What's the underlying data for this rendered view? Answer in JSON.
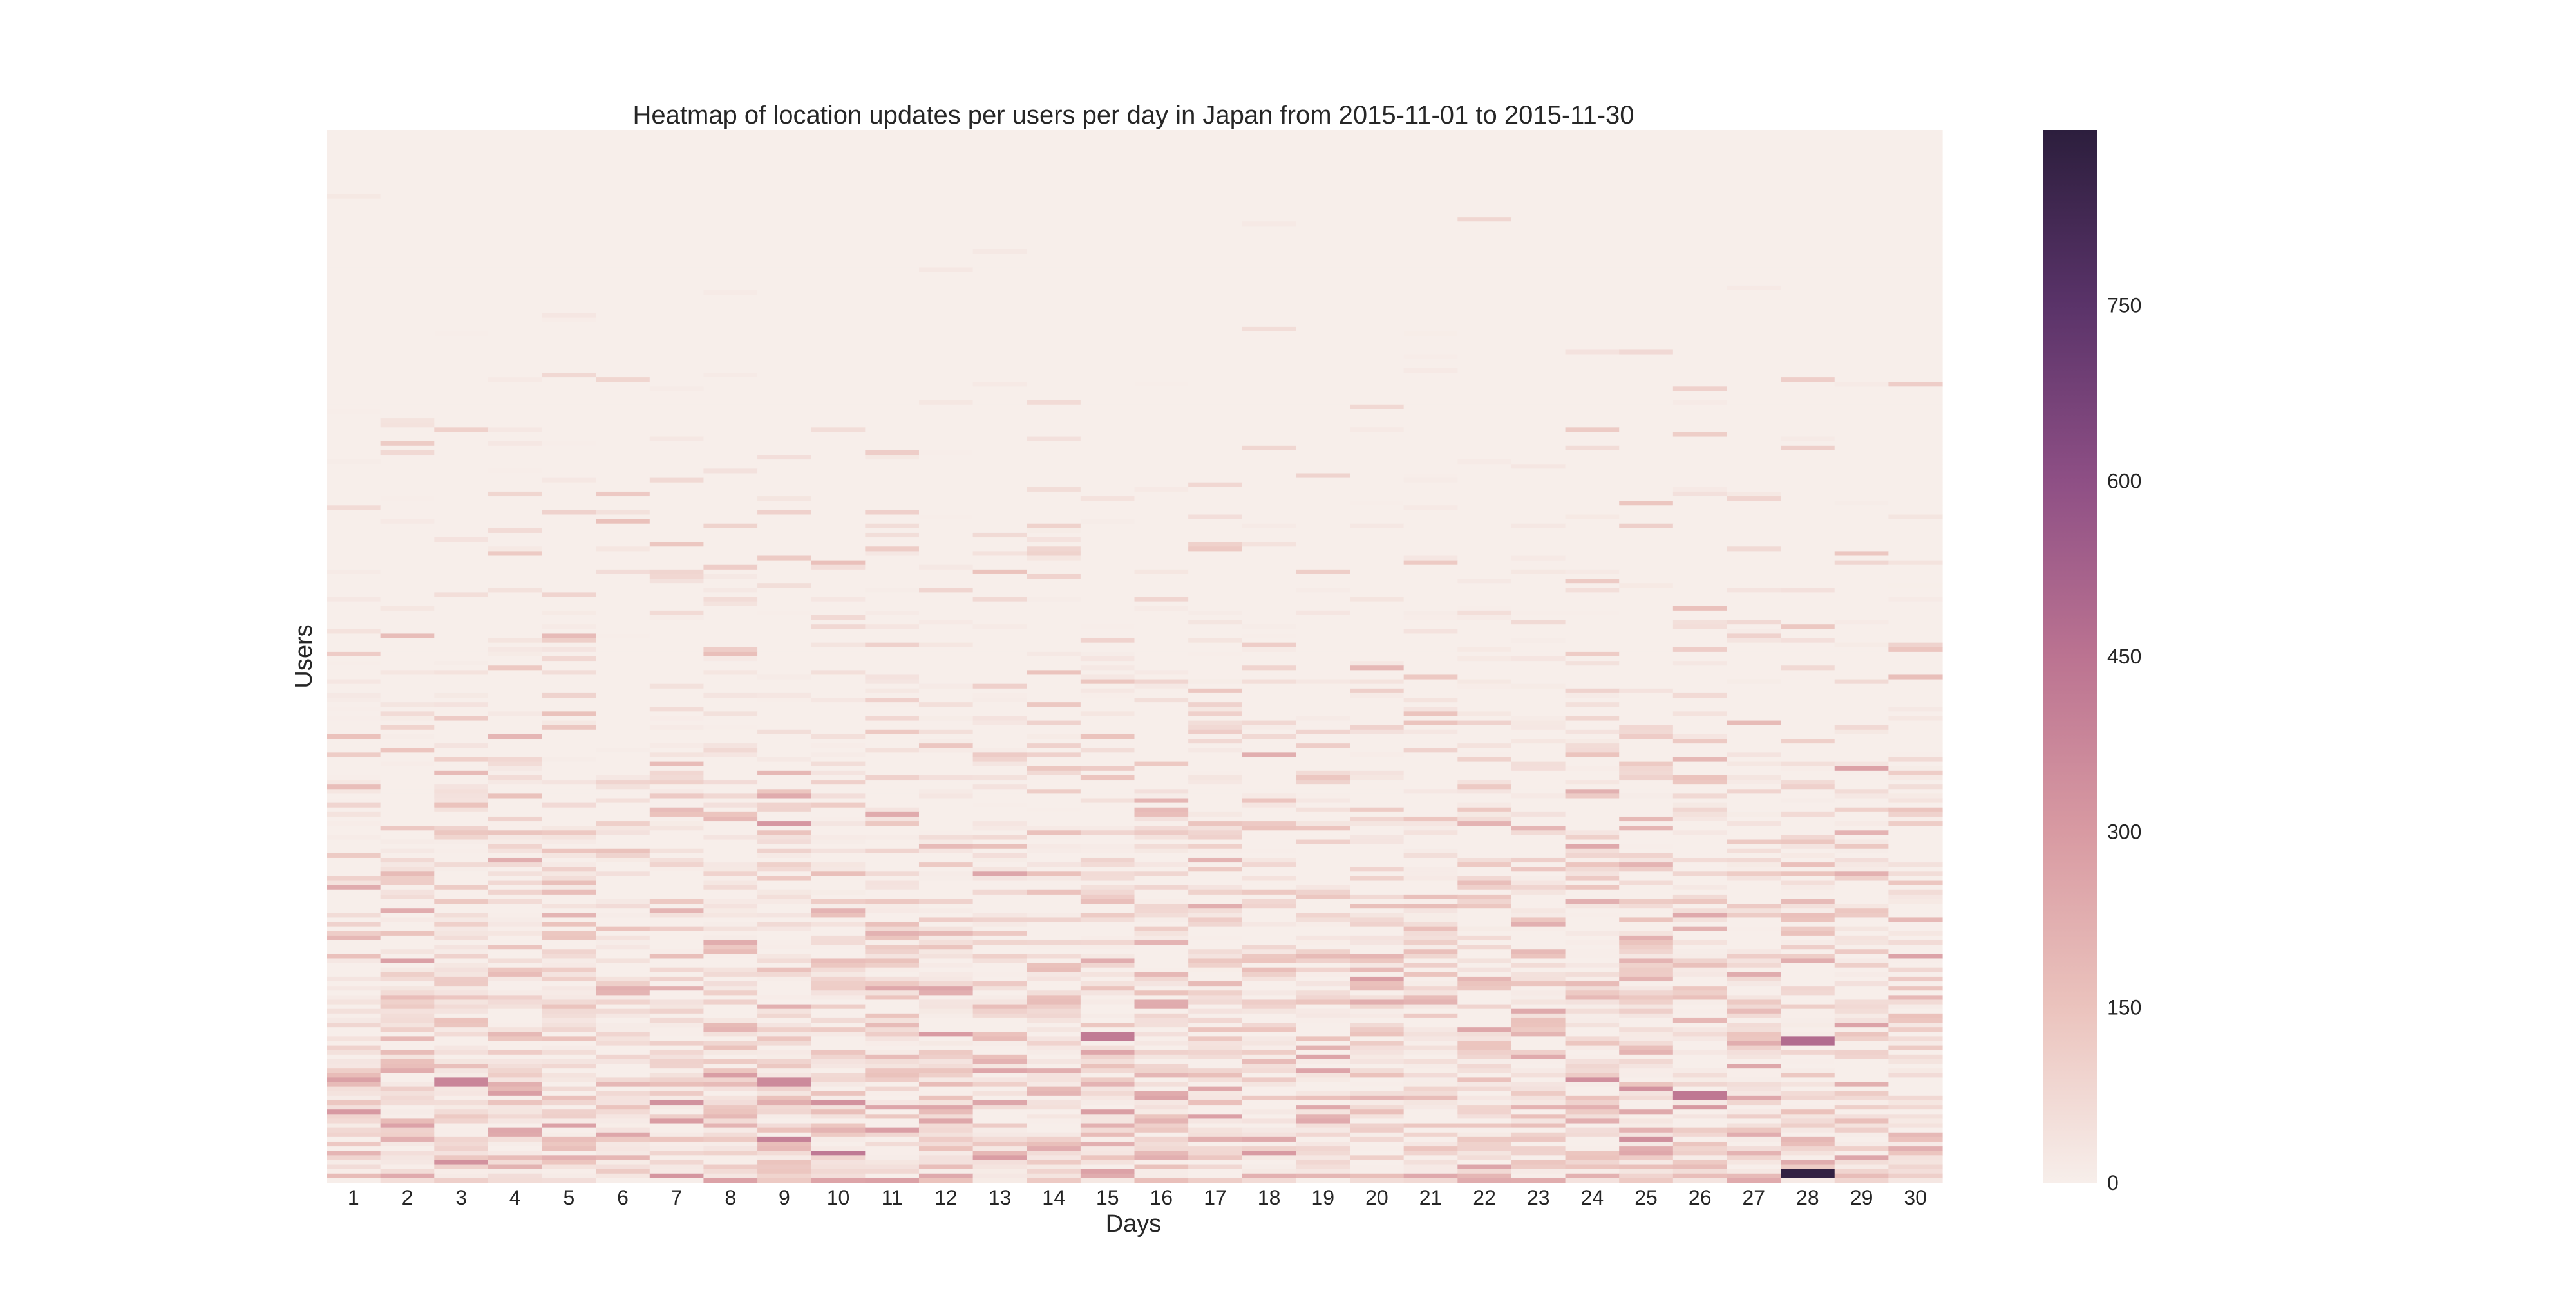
{
  "chart_data": {
    "type": "heatmap",
    "title": "Heatmap of location updates per users per day in Japan from 2015-11-01 to 2015-11-30",
    "xlabel": "Days",
    "ylabel": "Users",
    "x_ticks": [
      "1",
      "2",
      "3",
      "4",
      "5",
      "6",
      "7",
      "8",
      "9",
      "10",
      "11",
      "12",
      "13",
      "14",
      "15",
      "16",
      "17",
      "18",
      "19",
      "20",
      "21",
      "22",
      "23",
      "24",
      "25",
      "26",
      "27",
      "28",
      "29",
      "30"
    ],
    "y_ticks": [],
    "n_rows": 230,
    "value_range": [
      0,
      900
    ],
    "colorbar": {
      "ticks": [
        0,
        150,
        300,
        450,
        600,
        750
      ],
      "tick_labels": [
        "0",
        "150",
        "300",
        "450",
        "600",
        "750"
      ],
      "colors": [
        "#f7eeea",
        "#ebc3bd",
        "#d89aa2",
        "#bb7391",
        "#8e4f85",
        "#5a3369",
        "#2c1e3d"
      ]
    },
    "notable_values": [
      {
        "day": 28,
        "row": 227,
        "value": 880
      },
      {
        "day": 15,
        "row": 197,
        "value": 420
      },
      {
        "day": 28,
        "row": 198,
        "value": 480
      },
      {
        "day": 26,
        "row": 210,
        "value": 430
      },
      {
        "day": 3,
        "row": 207,
        "value": 380
      },
      {
        "day": 9,
        "row": 207,
        "value": 360
      }
    ],
    "description_of_values": "Most cells near 0; density and intensity increase toward the bottom rows (higher user index)."
  }
}
